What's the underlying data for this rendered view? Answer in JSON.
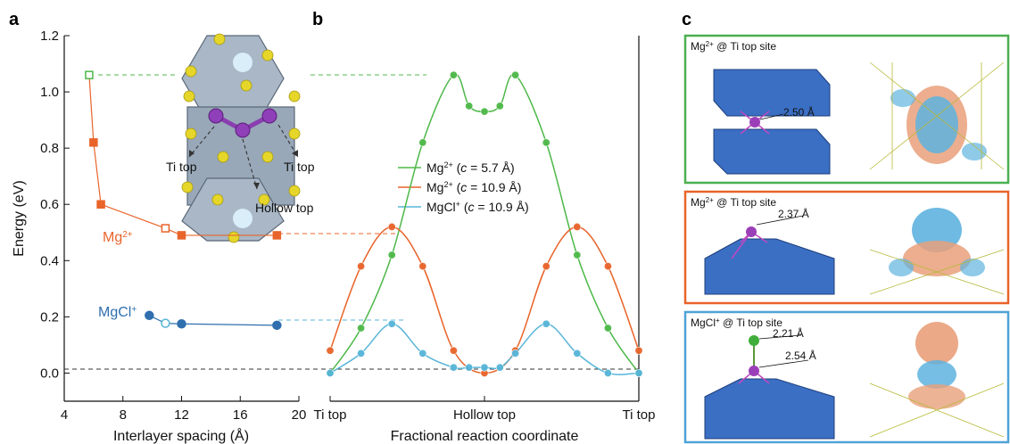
{
  "colors": {
    "green": "#4db848",
    "orange": "#e8642a",
    "blue": "#57b5d8",
    "navy": "#2f6fae",
    "panel_green": "#4caf50",
    "panel_orange": "#e8642a",
    "panel_blue": "#4fa3d6"
  },
  "panel_a": {
    "label": "a",
    "ylabel": "Energy (eV)",
    "xlabel": "Interlayer spacing (Å)",
    "mg_label": "Mg",
    "mg_sup": "2+",
    "mgcl_label": "MgCl",
    "mgcl_sup": "+",
    "inset": {
      "ti_top_left": "Ti top",
      "ti_top_right": "Ti top",
      "hollow_top": "Hollow top"
    }
  },
  "panel_b": {
    "label": "b",
    "xlabel": "Fractional reaction coordinate",
    "xticks": [
      "Ti top",
      "Hollow top",
      "Ti top"
    ],
    "legend": [
      {
        "ion": "Mg",
        "sup": "2+",
        "c_value": "5.7 Å"
      },
      {
        "ion": "Mg",
        "sup": "2+",
        "c_value": "10.9 Å"
      },
      {
        "ion": "MgCl",
        "sup": "+",
        "c_value": "10.9 Å"
      }
    ]
  },
  "panel_c": {
    "label": "c",
    "boxes": [
      {
        "ion": "Mg",
        "sup": "2+",
        "site": "@ Ti top site",
        "distances": [
          "2.50 Å"
        ]
      },
      {
        "ion": "Mg",
        "sup": "2+",
        "site": "@ Ti top site",
        "distances": [
          "2.37 Å"
        ]
      },
      {
        "ion": "MgCl",
        "sup": "+",
        "site": "@ Ti top site",
        "distances": [
          "2.21 Å",
          "2.54 Å"
        ]
      }
    ]
  },
  "chart_data": [
    {
      "type": "line",
      "panel": "a",
      "xlabel": "Interlayer spacing (Å)",
      "ylabel": "Energy (eV)",
      "xlim": [
        4,
        20
      ],
      "ylim": [
        -0.1,
        1.2
      ],
      "xticks": [
        4,
        8,
        12,
        16,
        20
      ],
      "yticks": [
        0.0,
        0.2,
        0.4,
        0.6,
        0.8,
        1.0,
        1.2
      ],
      "series": [
        {
          "name": "Mg2+",
          "x": [
            5.7,
            6.0,
            6.5,
            10.9,
            12.0,
            18.5
          ],
          "y": [
            1.06,
            0.82,
            0.6,
            0.515,
            0.49,
            0.49
          ],
          "open_points": [
            5.7,
            10.9
          ]
        },
        {
          "name": "MgCl+",
          "x": [
            9.8,
            10.9,
            12.0,
            18.5
          ],
          "y": [
            0.205,
            0.177,
            0.175,
            0.17
          ],
          "open_points": [
            10.9
          ]
        }
      ]
    },
    {
      "type": "line",
      "panel": "b",
      "xlabel": "Fractional reaction coordinate",
      "ylabel": "Energy (eV)",
      "xlim": [
        0,
        1
      ],
      "ylim": [
        -0.1,
        1.2
      ],
      "x_tick_labels": [
        "Ti top",
        "Hollow top",
        "Ti top"
      ],
      "series": [
        {
          "name": "Mg2+ (c = 5.7 Å)",
          "x": [
            0.0,
            0.1,
            0.2,
            0.3,
            0.4,
            0.45,
            0.5,
            0.55,
            0.6,
            0.7,
            0.8,
            0.9,
            1.0
          ],
          "y": [
            0.0,
            0.16,
            0.42,
            0.82,
            1.06,
            0.95,
            0.93,
            0.95,
            1.06,
            0.82,
            0.42,
            0.16,
            0.0
          ]
        },
        {
          "name": "Mg2+ (c = 10.9 Å)",
          "x": [
            0.0,
            0.1,
            0.2,
            0.3,
            0.4,
            0.5,
            0.6,
            0.7,
            0.8,
            0.9,
            1.0
          ],
          "y": [
            0.08,
            0.38,
            0.52,
            0.38,
            0.08,
            0.0,
            0.08,
            0.38,
            0.52,
            0.38,
            0.08
          ]
        },
        {
          "name": "MgCl+ (c = 10.9 Å)",
          "x": [
            0.0,
            0.1,
            0.2,
            0.3,
            0.4,
            0.45,
            0.5,
            0.55,
            0.6,
            0.7,
            0.8,
            0.9,
            1.0
          ],
          "y": [
            0.0,
            0.07,
            0.175,
            0.07,
            0.02,
            0.02,
            0.02,
            0.02,
            0.07,
            0.175,
            0.07,
            0.0,
            0.0
          ]
        }
      ]
    }
  ]
}
